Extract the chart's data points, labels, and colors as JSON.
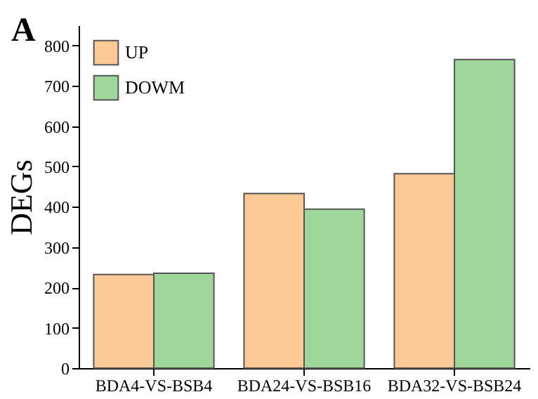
{
  "chart_data": {
    "type": "bar",
    "ylabel": "DEGs",
    "annotations": [
      "A"
    ],
    "categories": [
      "BDA4-VS-BSB4",
      "BDA24-VS-BSB16",
      "BDA32-VS-BSB24"
    ],
    "series": [
      {
        "name": "UP",
        "color": "#fcc895",
        "values": [
          232,
          433,
          482
        ]
      },
      {
        "name": "DOWM",
        "color": "#9fd79b",
        "values": [
          235,
          394,
          765
        ]
      }
    ],
    "ylim": [
      0,
      850
    ],
    "yticks": [
      0,
      100,
      200,
      300,
      400,
      500,
      600,
      700,
      800
    ],
    "grid": false,
    "legend": "top left"
  }
}
